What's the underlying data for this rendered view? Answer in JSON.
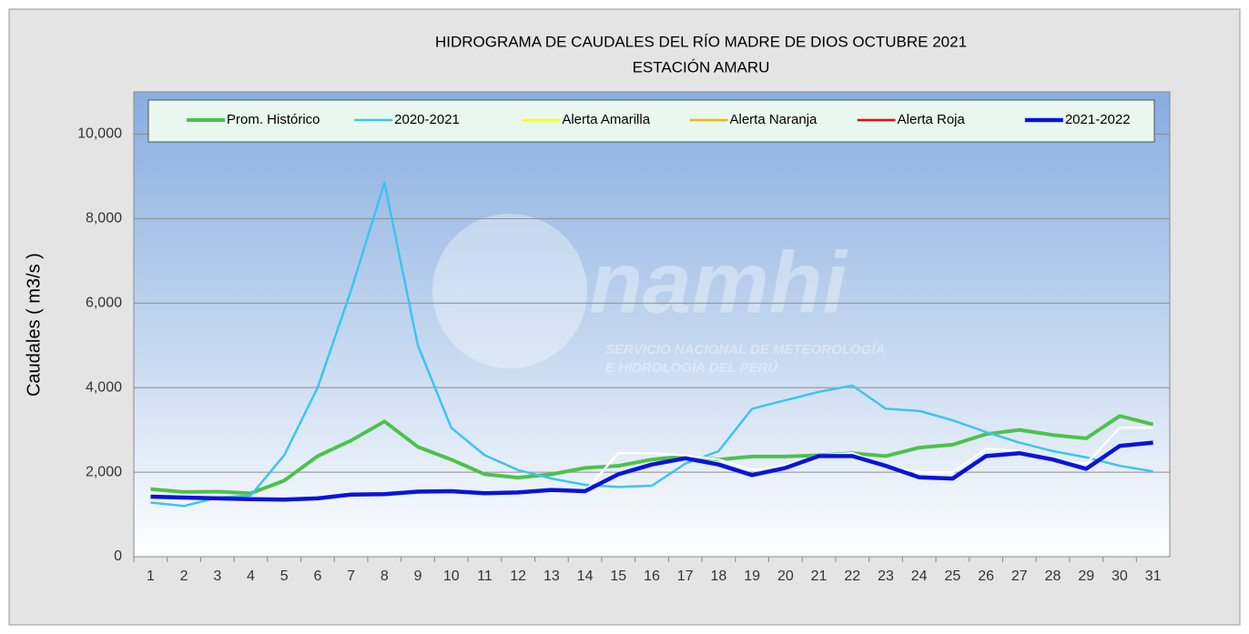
{
  "chart_data": {
    "type": "line",
    "title": "HIDROGRAMA DE CAUDALES DEL RÍO MADRE DE DIOS OCTUBRE 2021",
    "subtitle": "ESTACIÓN AMARU",
    "ylabel": "Caudales ( m3/s )",
    "watermark": {
      "name": "Senamhi",
      "line1": "SERVICIO NACIONAL DE METEOROLOGÍA",
      "line2": "E HIDROLOGÍA DEL PERÚ"
    },
    "categories": [
      "1",
      "2",
      "3",
      "4",
      "5",
      "6",
      "7",
      "8",
      "9",
      "10",
      "11",
      "12",
      "13",
      "14",
      "15",
      "16",
      "17",
      "18",
      "19",
      "20",
      "21",
      "22",
      "23",
      "24",
      "25",
      "26",
      "27",
      "28",
      "29",
      "30",
      "31"
    ],
    "ylim": [
      0,
      11000
    ],
    "yticks": [
      0,
      {
        "value": 2000,
        "label": "2,000"
      },
      {
        "value": 4000,
        "label": "4,000"
      },
      {
        "value": 6000,
        "label": "6,000"
      },
      {
        "value": 8000,
        "label": "8,000"
      },
      {
        "value": 10000,
        "label": "10,000"
      }
    ],
    "grid": true,
    "legend": "top",
    "series": [
      {
        "name": "Prom. Histórico",
        "color": "#4cc24a",
        "width": 4,
        "values": [
          1600,
          1530,
          1540,
          1500,
          1800,
          2380,
          2750,
          3200,
          2600,
          2300,
          1950,
          1870,
          1950,
          2100,
          2150,
          2300,
          2380,
          2300,
          2370,
          2370,
          2400,
          2450,
          2380,
          2580,
          2650,
          2900,
          3000,
          2880,
          2800,
          3330,
          3130
        ]
      },
      {
        "name": "2020-2021",
        "color": "#3cc4f0",
        "width": 2.5,
        "values": [
          1280,
          1200,
          1400,
          1450,
          2400,
          4000,
          6300,
          8850,
          5000,
          3050,
          2400,
          2050,
          1850,
          1700,
          1650,
          1680,
          2200,
          2500,
          3500,
          3700,
          3900,
          4050,
          3500,
          3450,
          3230,
          2950,
          2700,
          2500,
          2350,
          2150,
          2020
        ]
      },
      {
        "name": "Alerta Amarilla",
        "color": "#ffff00",
        "width": 2.5,
        "values": [
          null,
          null,
          null,
          null,
          null,
          null,
          null,
          null,
          null,
          null,
          null,
          null,
          null,
          null,
          null,
          null,
          null,
          null,
          null,
          null,
          null,
          null,
          null,
          null,
          null,
          null,
          null,
          null,
          null,
          null,
          null
        ]
      },
      {
        "name": "Alerta Naranja",
        "color": "#f5b800",
        "width": 2.5,
        "values": [
          null,
          null,
          null,
          null,
          null,
          null,
          null,
          null,
          null,
          null,
          null,
          null,
          null,
          null,
          null,
          null,
          null,
          null,
          null,
          null,
          null,
          null,
          null,
          null,
          null,
          null,
          null,
          null,
          null,
          null,
          null
        ]
      },
      {
        "name": "Alerta Roja",
        "color": "#ff0000",
        "width": 2.5,
        "values": [
          null,
          null,
          null,
          null,
          null,
          null,
          null,
          null,
          null,
          null,
          null,
          null,
          null,
          null,
          null,
          null,
          null,
          null,
          null,
          null,
          null,
          null,
          null,
          null,
          null,
          null,
          null,
          null,
          null,
          null,
          null
        ]
      },
      {
        "color": "#ffffff",
        "width": 2.5,
        "values": [
          1420,
          1400,
          1380,
          1360,
          1350,
          1380,
          1470,
          1480,
          1540,
          1550,
          1500,
          1520,
          1580,
          1550,
          2450,
          2450,
          2400,
          2300,
          2050,
          2150,
          2400,
          2450,
          2150,
          2000,
          2000,
          2550,
          2500,
          2300,
          2200,
          3050,
          3050
        ]
      },
      {
        "name": "2021-2022",
        "color": "#0a14d8",
        "width": 4.5,
        "values": [
          1420,
          1400,
          1380,
          1360,
          1350,
          1380,
          1470,
          1480,
          1540,
          1550,
          1500,
          1520,
          1580,
          1550,
          1950,
          2180,
          2330,
          2180,
          1930,
          2100,
          2380,
          2380,
          2150,
          1880,
          1850,
          2380,
          2450,
          2300,
          2080,
          2620,
          2700
        ]
      }
    ]
  }
}
